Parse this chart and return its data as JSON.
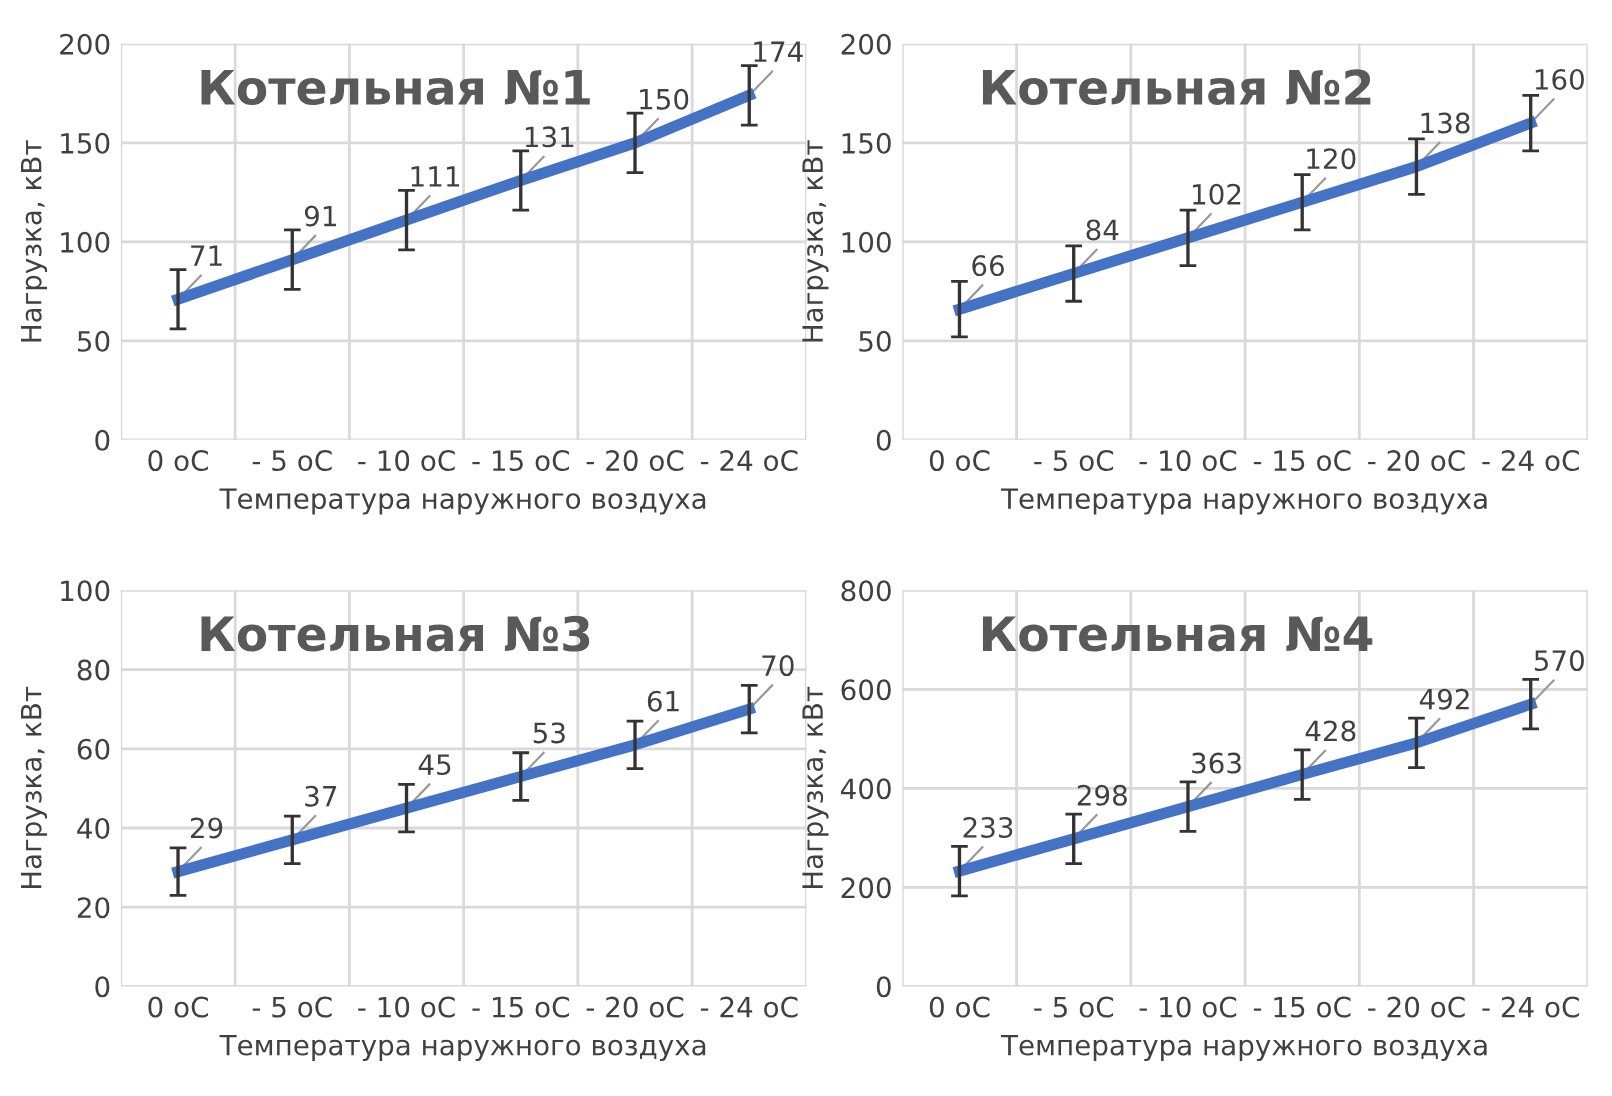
{
  "chart_data": [
    {
      "type": "line",
      "title": "Котельная №1",
      "xlabel": "Температура наружного воздуха",
      "ylabel": "Нагрузка, кВт",
      "categories": [
        "0 oC",
        "- 5 oC",
        "- 10 oC",
        "- 15 oC",
        "- 20 oC",
        "- 24 oC"
      ],
      "series": [
        {
          "color": "#4472c4",
          "values": [
            71,
            91,
            111,
            131,
            150,
            174
          ],
          "errors": [
            15,
            15,
            15,
            15,
            15,
            15
          ]
        }
      ],
      "ylim": [
        0,
        200
      ],
      "yticks": [
        0,
        50,
        100,
        150,
        200
      ],
      "grid": true,
      "data_labels": true,
      "legend": false,
      "marker": "none",
      "line_style": "solid"
    },
    {
      "type": "line",
      "title": "Котельная №2",
      "xlabel": "Температура наружного воздуха",
      "ylabel": "Нагрузка, кВт",
      "categories": [
        "0 oC",
        "- 5 oC",
        "- 10 oC",
        "- 15 oC",
        "- 20 oC",
        "- 24 oC"
      ],
      "series": [
        {
          "color": "#4472c4",
          "values": [
            66,
            84,
            102,
            120,
            138,
            160
          ],
          "errors": [
            14,
            14,
            14,
            14,
            14,
            14
          ]
        }
      ],
      "ylim": [
        0,
        200
      ],
      "yticks": [
        0,
        50,
        100,
        150,
        200
      ],
      "grid": true,
      "data_labels": true,
      "legend": false,
      "marker": "none",
      "line_style": "solid"
    },
    {
      "type": "line",
      "title": "Котельная №3",
      "xlabel": "Температура наружного воздуха",
      "ylabel": "Нагрузка, кВт",
      "categories": [
        "0 oC",
        "- 5 oC",
        "- 10 oC",
        "- 15 oC",
        "- 20 oC",
        "- 24 oC"
      ],
      "series": [
        {
          "color": "#4472c4",
          "values": [
            29,
            37,
            45,
            53,
            61,
            70
          ],
          "errors": [
            6,
            6,
            6,
            6,
            6,
            6
          ]
        }
      ],
      "ylim": [
        0,
        100
      ],
      "yticks": [
        0,
        20,
        40,
        60,
        80,
        100
      ],
      "grid": true,
      "data_labels": true,
      "legend": false,
      "marker": "none",
      "line_style": "solid"
    },
    {
      "type": "line",
      "title": "Котельная №4",
      "xlabel": "Температура наружного воздуха",
      "ylabel": "Нагрузка, кВт",
      "categories": [
        "0 oC",
        "- 5 oC",
        "- 10 oC",
        "- 15 oC",
        "- 20 oC",
        "- 24 oC"
      ],
      "series": [
        {
          "color": "#4472c4",
          "values": [
            233,
            298,
            363,
            428,
            492,
            570
          ],
          "errors": [
            50,
            50,
            50,
            50,
            50,
            50
          ]
        }
      ],
      "ylim": [
        0,
        800
      ],
      "yticks": [
        0,
        200,
        400,
        600,
        800
      ],
      "grid": true,
      "data_labels": true,
      "legend": false,
      "marker": "none",
      "line_style": "solid"
    }
  ]
}
